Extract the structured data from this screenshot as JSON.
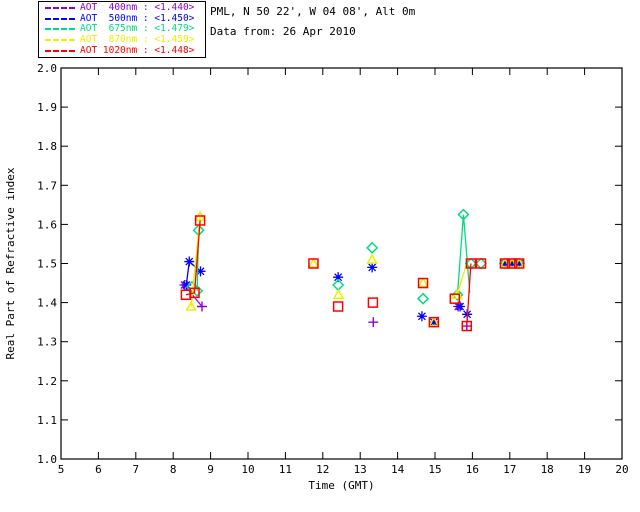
{
  "header": {
    "site_line": "PML, N 50 22', W 04 08', Alt 0m",
    "date_line": "Data from: 26 Apr 2010"
  },
  "legend": {
    "items": [
      {
        "label": "AOT  400nm : <1.440>",
        "wavelength": "400nm",
        "mean_value": "<1.440>",
        "color": "#9400D3"
      },
      {
        "label": "AOT  500nm : <1.450>",
        "wavelength": "500nm",
        "mean_value": "<1.450>",
        "color": "#0000FF"
      },
      {
        "label": "AOT  675nm : <1.479>",
        "wavelength": "675nm",
        "mean_value": "<1.479>",
        "color": "#00DD80"
      },
      {
        "label": "AOT  870nm : <1.459>",
        "wavelength": "870nm",
        "mean_value": "<1.459>",
        "color": "#EEEE00"
      },
      {
        "label": "AOT 1020nm : <1.448>",
        "wavelength": "1020nm",
        "mean_value": "<1.448>",
        "color": "#FF0000"
      }
    ]
  },
  "chart_data": {
    "type": "scatter",
    "title": "",
    "xlabel": "Time (GMT)",
    "ylabel": "Real Part of Refractive index",
    "xlim": [
      5,
      20
    ],
    "ylim": [
      1.0,
      2.0
    ],
    "xticks": [
      5,
      6,
      7,
      8,
      9,
      10,
      11,
      12,
      13,
      14,
      15,
      16,
      17,
      18,
      19,
      20
    ],
    "yticks": [
      1.0,
      1.1,
      1.2,
      1.3,
      1.4,
      1.5,
      1.6,
      1.7,
      1.8,
      1.9,
      2.0
    ],
    "grid": false,
    "legend_position": "top-left-outside",
    "frame_color": "#000000",
    "series": [
      {
        "name": "AOT 400nm",
        "color": "#9400D3",
        "marker": "plus",
        "points": [
          [
            8.3,
            1.445,
            "asterisk"
          ],
          [
            8.77,
            1.39
          ],
          [
            13.35,
            1.35
          ],
          [
            15.62,
            1.39,
            "asterisk"
          ],
          [
            15.85,
            1.34
          ],
          [
            16.87,
            1.5
          ],
          [
            17.06,
            1.5
          ],
          [
            17.25,
            1.5
          ]
        ],
        "segments": [
          [
            [
              8.3,
              1.445
            ],
            [
              8.77,
              1.39
            ]
          ]
        ]
      },
      {
        "name": "AOT 500nm",
        "color": "#0000FF",
        "marker": "asterisk",
        "points": [
          [
            8.35,
            1.445
          ],
          [
            8.43,
            1.505
          ],
          [
            8.73,
            1.48
          ],
          [
            12.41,
            1.465
          ],
          [
            13.32,
            1.49
          ],
          [
            14.65,
            1.365
          ],
          [
            14.97,
            1.35
          ],
          [
            15.67,
            1.39
          ],
          [
            15.86,
            1.37
          ],
          [
            16.87,
            1.5
          ],
          [
            17.06,
            1.5
          ],
          [
            17.25,
            1.5
          ]
        ],
        "segments": [
          [
            [
              8.35,
              1.445
            ],
            [
              8.43,
              1.505
            ],
            [
              8.73,
              1.48
            ]
          ]
        ]
      },
      {
        "name": "AOT 675nm",
        "color": "#00DD80",
        "marker": "diamond",
        "points": [
          [
            8.5,
            1.44
          ],
          [
            8.64,
            1.43
          ],
          [
            8.68,
            1.585
          ],
          [
            12.41,
            1.445
          ],
          [
            13.32,
            1.54
          ],
          [
            14.68,
            1.41
          ],
          [
            15.6,
            1.42
          ],
          [
            15.76,
            1.625
          ],
          [
            15.96,
            1.5
          ],
          [
            16.23,
            1.5
          ],
          [
            16.87,
            1.5
          ],
          [
            17.06,
            1.5
          ],
          [
            17.25,
            1.5
          ]
        ],
        "segments": [
          [
            [
              8.64,
              1.43
            ],
            [
              8.68,
              1.585
            ]
          ],
          [
            [
              15.6,
              1.42
            ],
            [
              15.76,
              1.625
            ],
            [
              15.93,
              1.425
            ]
          ]
        ]
      },
      {
        "name": "AOT 870nm",
        "color": "#EEEE00",
        "marker": "triangle",
        "points": [
          [
            8.48,
            1.39
          ],
          [
            8.72,
            1.62
          ],
          [
            11.75,
            1.5
          ],
          [
            12.42,
            1.42
          ],
          [
            13.32,
            1.51
          ],
          [
            14.68,
            1.45
          ],
          [
            14.97,
            1.35
          ],
          [
            15.59,
            1.42
          ],
          [
            16.87,
            1.5
          ],
          [
            17.06,
            1.5
          ],
          [
            17.25,
            1.5
          ]
        ],
        "segments": [
          [
            [
              8.48,
              1.39
            ],
            [
              8.72,
              1.62
            ]
          ],
          [
            [
              15.59,
              1.42
            ],
            [
              15.85,
              1.5
            ]
          ]
        ]
      },
      {
        "name": "AOT 1020nm",
        "color": "#FF0000",
        "marker": "square",
        "points": [
          [
            8.34,
            1.42
          ],
          [
            8.57,
            1.425
          ],
          [
            8.72,
            1.61
          ],
          [
            11.75,
            1.5
          ],
          [
            12.41,
            1.39
          ],
          [
            13.34,
            1.4
          ],
          [
            14.68,
            1.45
          ],
          [
            14.97,
            1.35
          ],
          [
            15.53,
            1.41
          ],
          [
            15.85,
            1.34
          ],
          [
            15.96,
            1.5
          ],
          [
            16.23,
            1.5
          ],
          [
            16.87,
            1.5
          ],
          [
            17.06,
            1.5
          ],
          [
            17.25,
            1.5
          ]
        ],
        "segments": [
          [
            [
              8.34,
              1.42
            ],
            [
              8.57,
              1.425
            ],
            [
              8.72,
              1.61
            ]
          ],
          [
            [
              15.85,
              1.34
            ],
            [
              15.96,
              1.5
            ]
          ]
        ]
      }
    ]
  }
}
